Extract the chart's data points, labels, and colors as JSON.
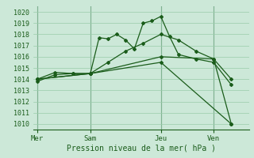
{
  "xlabel": "Pression niveau de la mer( hPa )",
  "ylim": [
    1009.5,
    1020.5
  ],
  "yticks": [
    1010,
    1011,
    1012,
    1013,
    1014,
    1015,
    1016,
    1017,
    1018,
    1019,
    1020
  ],
  "bg_color": "#cce8d8",
  "grid_color": "#99ccaa",
  "line_color": "#1a5c1a",
  "xtick_labels": [
    "Mer",
    "Sam",
    "Jeu",
    "Ven"
  ],
  "xtick_positions": [
    0,
    24,
    56,
    80
  ],
  "xlim": [
    -2,
    96
  ],
  "vline_positions": [
    0,
    24,
    56,
    80
  ],
  "lines": [
    {
      "x": [
        0,
        8,
        16,
        24,
        28,
        32,
        36,
        40,
        44,
        48,
        52,
        56,
        60,
        64,
        72,
        80,
        88
      ],
      "y": [
        1013.8,
        1014.4,
        1014.5,
        1014.5,
        1017.7,
        1017.6,
        1018.0,
        1017.5,
        1016.7,
        1019.0,
        1019.2,
        1019.6,
        1017.8,
        1016.2,
        1015.8,
        1015.5,
        1013.5
      ]
    },
    {
      "x": [
        0,
        8,
        16,
        24,
        32,
        40,
        48,
        56,
        64,
        72,
        80,
        88
      ],
      "y": [
        1014.0,
        1014.6,
        1014.5,
        1014.5,
        1015.5,
        1016.5,
        1017.2,
        1018.0,
        1017.5,
        1016.5,
        1015.8,
        1014.0
      ]
    },
    {
      "x": [
        0,
        24,
        56,
        80,
        88
      ],
      "y": [
        1014.0,
        1014.5,
        1016.0,
        1015.8,
        1010.0
      ]
    },
    {
      "x": [
        0,
        24,
        56,
        88
      ],
      "y": [
        1014.0,
        1014.5,
        1015.5,
        1010.0
      ]
    }
  ]
}
